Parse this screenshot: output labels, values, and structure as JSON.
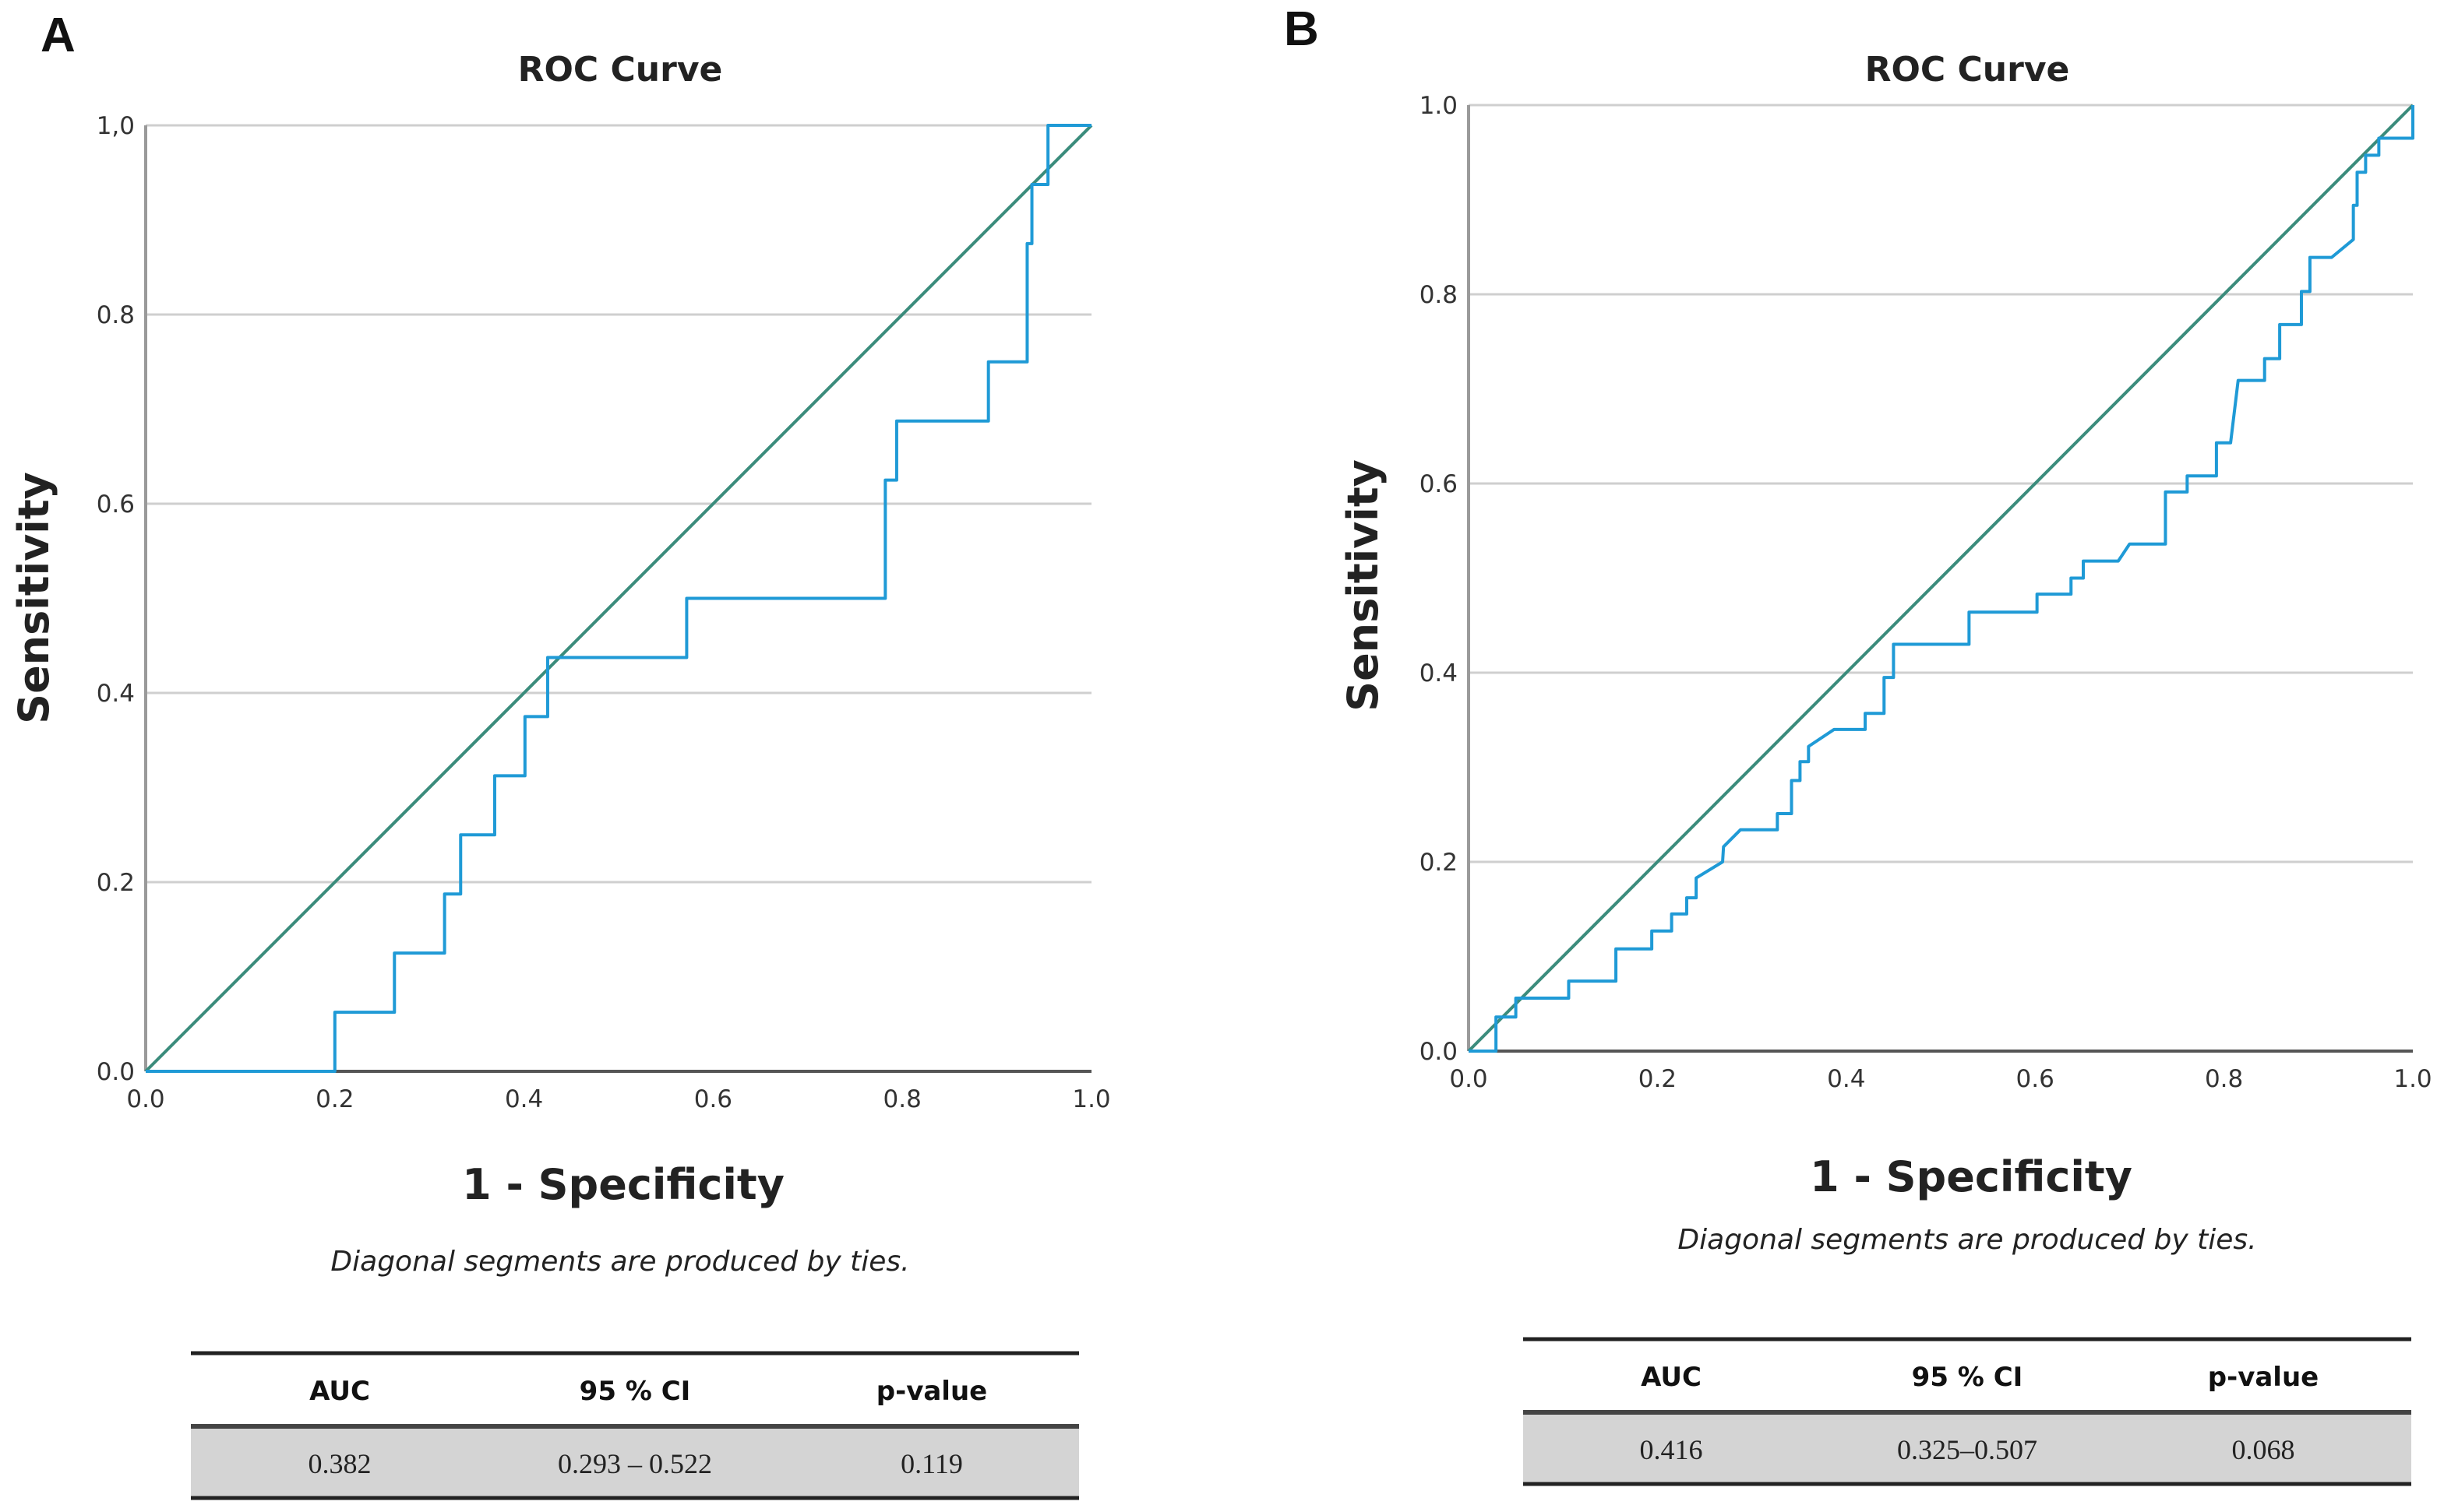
{
  "chart_data": [
    {
      "panel": "A",
      "type": "line",
      "title": "ROC Curve",
      "xlabel": "1 - Specificity",
      "ylabel": "Sensitivity",
      "note": "Diagonal segments are produced by ties.",
      "xlim": [
        0,
        1
      ],
      "ylim": [
        0,
        1
      ],
      "xticks": [
        "0.0",
        "0.2",
        "0.4",
        "0.6",
        "0.8",
        "1.0"
      ],
      "yticks": [
        "0.0",
        "0.2",
        "0.4",
        "0.6",
        "0.8",
        "1,0"
      ],
      "grid": "horizontal",
      "colors": {
        "curve": "#1f9ad6",
        "reference": "#3b8c7c"
      },
      "series": [
        {
          "x": [
            0,
            0.2,
            0.2,
            0.263,
            0.263,
            0.316,
            0.316,
            0.333,
            0.333,
            0.369,
            0.369,
            0.401,
            0.401,
            0.425,
            0.425,
            0.572,
            0.572,
            0.782,
            0.782,
            0.794,
            0.794,
            0.891,
            0.891,
            0.932,
            0.932,
            0.937,
            0.937,
            0.954,
            0.954,
            1.0
          ],
          "y": [
            0,
            0,
            0.0625,
            0.0625,
            0.125,
            0.125,
            0.1875,
            0.1875,
            0.25,
            0.25,
            0.3125,
            0.3125,
            0.375,
            0.375,
            0.4375,
            0.4375,
            0.5,
            0.5,
            0.625,
            0.625,
            0.6875,
            0.6875,
            0.75,
            0.75,
            0.875,
            0.875,
            0.9375,
            0.9375,
            1.0,
            1.0
          ]
        },
        {
          "x": [
            0,
            1
          ],
          "y": [
            0,
            1
          ]
        }
      ],
      "table": {
        "headers": [
          "AUC",
          "95 % CI",
          "p-value"
        ],
        "row": [
          "0.382",
          "0.293 – 0.522",
          "0.119"
        ]
      }
    },
    {
      "panel": "B",
      "type": "line",
      "title": "ROC Curve",
      "xlabel": "1 - Specificity",
      "ylabel": "Sensitivity",
      "note": "Diagonal segments are produced by ties.",
      "xlim": [
        0,
        1
      ],
      "ylim": [
        0,
        1
      ],
      "xticks": [
        "0.0",
        "0.2",
        "0.4",
        "0.6",
        "0.8",
        "1.0"
      ],
      "yticks": [
        "0.0",
        "0.2",
        "0.4",
        "0.6",
        "0.8",
        "1.0"
      ],
      "grid": "horizontal",
      "colors": {
        "curve": "#1f9ad6",
        "reference": "#3b8c7c"
      },
      "series": [
        {
          "x": [
            0,
            0.029,
            0.029,
            0.05,
            0.05,
            0.106,
            0.106,
            0.156,
            0.156,
            0.194,
            0.194,
            0.215,
            0.215,
            0.231,
            0.231,
            0.241,
            0.241,
            0.269,
            0.27,
            0.288,
            0.327,
            0.327,
            0.342,
            0.342,
            0.351,
            0.351,
            0.36,
            0.36,
            0.387,
            0.42,
            0.42,
            0.44,
            0.44,
            0.45,
            0.45,
            0.53,
            0.53,
            0.602,
            0.602,
            0.638,
            0.638,
            0.651,
            0.651,
            0.688,
            0.7,
            0.738,
            0.738,
            0.761,
            0.761,
            0.792,
            0.792,
            0.807,
            0.815,
            0.843,
            0.843,
            0.859,
            0.859,
            0.882,
            0.882,
            0.891,
            0.891,
            0.914,
            0.937,
            0.937,
            0.941,
            0.941,
            0.95,
            0.95,
            0.964,
            0.964,
            0.978,
            0.978,
            1.0,
            1.0
          ],
          "y": [
            0,
            0,
            0.036,
            0.036,
            0.056,
            0.056,
            0.074,
            0.074,
            0.108,
            0.108,
            0.127,
            0.127,
            0.145,
            0.145,
            0.162,
            0.162,
            0.183,
            0.2,
            0.216,
            0.234,
            0.234,
            0.251,
            0.251,
            0.286,
            0.286,
            0.306,
            0.306,
            0.322,
            0.34,
            0.34,
            0.357,
            0.357,
            0.395,
            0.395,
            0.43,
            0.43,
            0.464,
            0.464,
            0.483,
            0.483,
            0.5,
            0.5,
            0.518,
            0.518,
            0.536,
            0.536,
            0.591,
            0.591,
            0.608,
            0.608,
            0.643,
            0.643,
            0.709,
            0.709,
            0.732,
            0.732,
            0.768,
            0.768,
            0.803,
            0.803,
            0.839,
            0.839,
            0.858,
            0.894,
            0.894,
            0.929,
            0.929,
            0.947,
            0.947,
            0.965,
            0.965,
            0.965,
            0.965,
            1.0
          ]
        },
        {
          "x": [
            0,
            1
          ],
          "y": [
            0,
            1
          ]
        }
      ],
      "table": {
        "headers": [
          "AUC",
          "95 % CI",
          "p-value"
        ],
        "row": [
          "0.416",
          "0.325–0.507",
          "0.068"
        ]
      }
    }
  ]
}
